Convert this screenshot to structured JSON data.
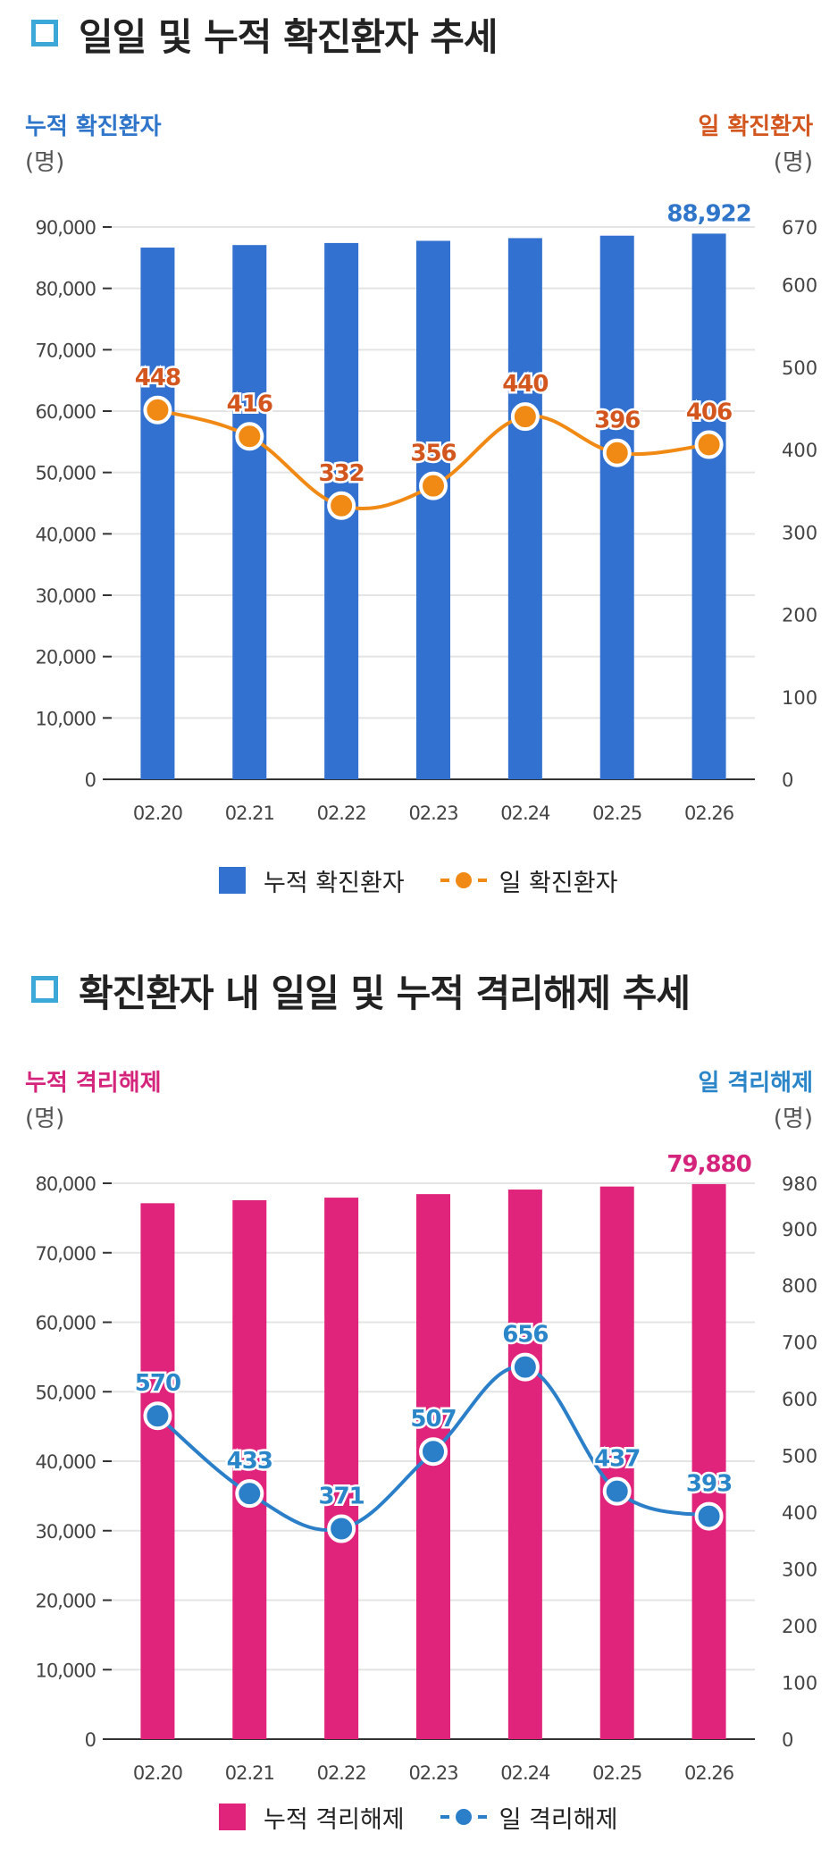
{
  "sections": [
    {
      "title": "일일 및 누적 확진환자 추세",
      "left_axis_title": "누적 확진환자",
      "left_axis_unit": "(명)",
      "right_axis_title": "일 확진환자",
      "right_axis_unit": "(명)",
      "legend": {
        "bar_label": "누적 확진환자",
        "line_label": "일 확진환자"
      }
    },
    {
      "title": "확진환자 내 일일 및 누적 격리해제 추세",
      "left_axis_title": "누적 격리해제",
      "left_axis_unit": "(명)",
      "right_axis_title": "일 격리해제",
      "right_axis_unit": "(명)",
      "legend": {
        "bar_label": "누적 격리해제",
        "line_label": "일 격리해제"
      }
    }
  ],
  "colors": {
    "title_square": "#3ba8d8",
    "chart1_bar": "#3371d0",
    "chart1_line": "#f08a14",
    "chart1_left_title": "#2f75c9",
    "chart1_right_title": "#d2561e",
    "chart2_bar": "#e0237b",
    "chart2_line": "#2b7fc9",
    "chart2_left_title": "#d4247c",
    "chart2_right_title": "#2b86c9"
  },
  "chart_data": [
    {
      "type": "bar",
      "categories": [
        "02.20",
        "02.21",
        "02.22",
        "02.23",
        "02.24",
        "02.25",
        "02.26"
      ],
      "series": [
        {
          "name": "누적 확진환자",
          "type": "bar",
          "axis": "left",
          "values": [
            86645,
            87061,
            87393,
            87749,
            88189,
            88585,
            88922
          ]
        },
        {
          "name": "일 확진환자",
          "type": "line",
          "axis": "right",
          "values": [
            448,
            416,
            332,
            356,
            440,
            396,
            406
          ]
        }
      ],
      "bar_labels": [
        null,
        null,
        null,
        null,
        null,
        null,
        "88,922"
      ],
      "line_labels": [
        "448",
        "416",
        "332",
        "356",
        "440",
        "396",
        "406"
      ],
      "left_ticks": [
        "0",
        "10,000",
        "20,000",
        "30,000",
        "40,000",
        "50,000",
        "60,000",
        "70,000",
        "80,000",
        "90,000"
      ],
      "left_tick_values": [
        0,
        10000,
        20000,
        30000,
        40000,
        50000,
        60000,
        70000,
        80000,
        90000
      ],
      "left_ylim": [
        0,
        90000
      ],
      "right_ticks": [
        "0",
        "100",
        "200",
        "300",
        "400",
        "500",
        "600",
        "670"
      ],
      "right_tick_values": [
        0,
        100,
        200,
        300,
        400,
        500,
        600,
        670
      ],
      "right_ylim": [
        0,
        670
      ],
      "grid": true,
      "legend_position": "bottom"
    },
    {
      "type": "bar",
      "categories": [
        "02.20",
        "02.21",
        "02.22",
        "02.23",
        "02.24",
        "02.25",
        "02.26"
      ],
      "series": [
        {
          "name": "누적 격리해제",
          "type": "bar",
          "axis": "left",
          "values": [
            77128,
            77561,
            77932,
            78439,
            79095,
            79532,
            79880
          ]
        },
        {
          "name": "일 격리해제",
          "type": "line",
          "axis": "right",
          "values": [
            570,
            433,
            371,
            507,
            656,
            437,
            393
          ]
        }
      ],
      "bar_labels": [
        null,
        null,
        null,
        null,
        null,
        null,
        "79,880"
      ],
      "line_labels": [
        "570",
        "433",
        "371",
        "507",
        "656",
        "437",
        "393"
      ],
      "left_ticks": [
        "0",
        "10,000",
        "20,000",
        "30,000",
        "40,000",
        "50,000",
        "60,000",
        "70,000",
        "80,000"
      ],
      "left_tick_values": [
        0,
        10000,
        20000,
        30000,
        40000,
        50000,
        60000,
        70000,
        80000
      ],
      "left_ylim": [
        0,
        80000
      ],
      "right_ticks": [
        "0",
        "100",
        "200",
        "300",
        "400",
        "500",
        "600",
        "700",
        "800",
        "900",
        "980"
      ],
      "right_tick_values": [
        0,
        100,
        200,
        300,
        400,
        500,
        600,
        700,
        800,
        900,
        980
      ],
      "right_ylim": [
        0,
        980
      ],
      "grid": true,
      "legend_position": "bottom"
    }
  ]
}
